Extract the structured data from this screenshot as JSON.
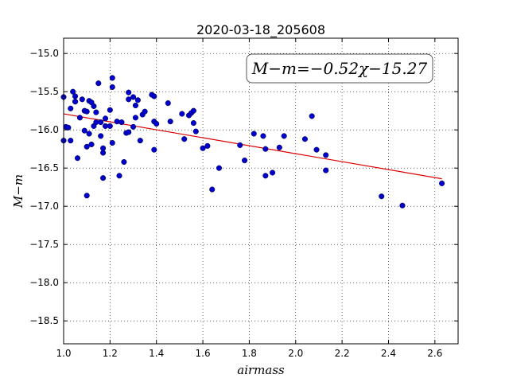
{
  "chart_data": {
    "type": "scatter",
    "title": "2020-03-18_205608",
    "xlabel": "airmass",
    "ylabel": "M−m",
    "xlim": [
      1.0,
      2.7
    ],
    "ylim": [
      -18.8,
      -14.8
    ],
    "y_inverted": true,
    "grid": true,
    "x_ticks": [
      1.0,
      1.2,
      1.4,
      1.6,
      1.8,
      2.0,
      2.2,
      2.4,
      2.6
    ],
    "x_tick_labels": [
      "1.0",
      "1.2",
      "1.4",
      "1.6",
      "1.8",
      "2.0",
      "2.2",
      "2.4",
      "2.6"
    ],
    "y_ticks": [
      -15.0,
      -15.5,
      -16.0,
      -16.5,
      -17.0,
      -17.5,
      -18.0,
      -18.5
    ],
    "y_tick_labels": [
      "−15.0",
      "−15.5",
      "−16.0",
      "−16.5",
      "−17.0",
      "−17.5",
      "−18.0",
      "−18.5"
    ],
    "annotation": "M−m=−0.52χ−15.27",
    "series": [
      {
        "kind": "scatter",
        "color": "#0000cc",
        "points": [
          [
            1.0,
            -15.57
          ],
          [
            1.0,
            -16.14
          ],
          [
            1.01,
            -15.96
          ],
          [
            1.02,
            -15.97
          ],
          [
            1.03,
            -15.72
          ],
          [
            1.03,
            -16.14
          ],
          [
            1.04,
            -15.5
          ],
          [
            1.05,
            -15.56
          ],
          [
            1.05,
            -15.63
          ],
          [
            1.05,
            -15.63
          ],
          [
            1.06,
            -16.37
          ],
          [
            1.07,
            -15.84
          ],
          [
            1.08,
            -15.6
          ],
          [
            1.09,
            -15.75
          ],
          [
            1.09,
            -16.01
          ],
          [
            1.1,
            -15.76
          ],
          [
            1.1,
            -16.22
          ],
          [
            1.1,
            -16.86
          ],
          [
            1.11,
            -15.62
          ],
          [
            1.11,
            -16.05
          ],
          [
            1.12,
            -15.64
          ],
          [
            1.12,
            -16.19
          ],
          [
            1.13,
            -15.69
          ],
          [
            1.13,
            -15.95
          ],
          [
            1.14,
            -15.77
          ],
          [
            1.14,
            -15.9
          ],
          [
            1.15,
            -15.39
          ],
          [
            1.16,
            -15.9
          ],
          [
            1.16,
            -16.08
          ],
          [
            1.17,
            -16.24
          ],
          [
            1.17,
            -16.3
          ],
          [
            1.17,
            -16.63
          ],
          [
            1.18,
            -15.95
          ],
          [
            1.18,
            -15.85
          ],
          [
            1.2,
            -15.74
          ],
          [
            1.2,
            -15.95
          ],
          [
            1.21,
            -15.44
          ],
          [
            1.21,
            -15.32
          ],
          [
            1.21,
            -16.17
          ],
          [
            1.23,
            -15.89
          ],
          [
            1.24,
            -16.6
          ],
          [
            1.25,
            -15.9
          ],
          [
            1.26,
            -16.42
          ],
          [
            1.27,
            -16.04
          ],
          [
            1.28,
            -16.03
          ],
          [
            1.28,
            -15.6
          ],
          [
            1.28,
            -15.51
          ],
          [
            1.3,
            -15.57
          ],
          [
            1.3,
            -15.96
          ],
          [
            1.31,
            -15.84
          ],
          [
            1.31,
            -15.68
          ],
          [
            1.32,
            -15.61
          ],
          [
            1.33,
            -16.14
          ],
          [
            1.34,
            -15.8
          ],
          [
            1.35,
            -15.76
          ],
          [
            1.38,
            -15.54
          ],
          [
            1.39,
            -15.56
          ],
          [
            1.39,
            -15.89
          ],
          [
            1.39,
            -16.26
          ],
          [
            1.4,
            -15.92
          ],
          [
            1.45,
            -15.65
          ],
          [
            1.46,
            -15.89
          ],
          [
            1.51,
            -15.79
          ],
          [
            1.52,
            -16.12
          ],
          [
            1.54,
            -15.81
          ],
          [
            1.55,
            -15.78
          ],
          [
            1.56,
            -15.75
          ],
          [
            1.56,
            -15.91
          ],
          [
            1.57,
            -16.02
          ],
          [
            1.6,
            -16.24
          ],
          [
            1.62,
            -16.21
          ],
          [
            1.64,
            -16.78
          ],
          [
            1.67,
            -16.5
          ],
          [
            1.76,
            -16.2
          ],
          [
            1.78,
            -16.4
          ],
          [
            1.82,
            -16.05
          ],
          [
            1.86,
            -16.08
          ],
          [
            1.87,
            -16.25
          ],
          [
            1.87,
            -16.6
          ],
          [
            1.9,
            -16.56
          ],
          [
            1.93,
            -16.23
          ],
          [
            1.95,
            -16.08
          ],
          [
            2.04,
            -16.12
          ],
          [
            2.07,
            -15.82
          ],
          [
            2.09,
            -16.26
          ],
          [
            2.13,
            -16.33
          ],
          [
            2.13,
            -16.53
          ],
          [
            2.37,
            -16.87
          ],
          [
            2.46,
            -16.99
          ],
          [
            2.63,
            -16.7
          ]
        ]
      },
      {
        "kind": "line",
        "color": "#dd0000",
        "points": [
          [
            1.0,
            -15.79
          ],
          [
            2.63,
            -16.64
          ]
        ]
      }
    ]
  }
}
